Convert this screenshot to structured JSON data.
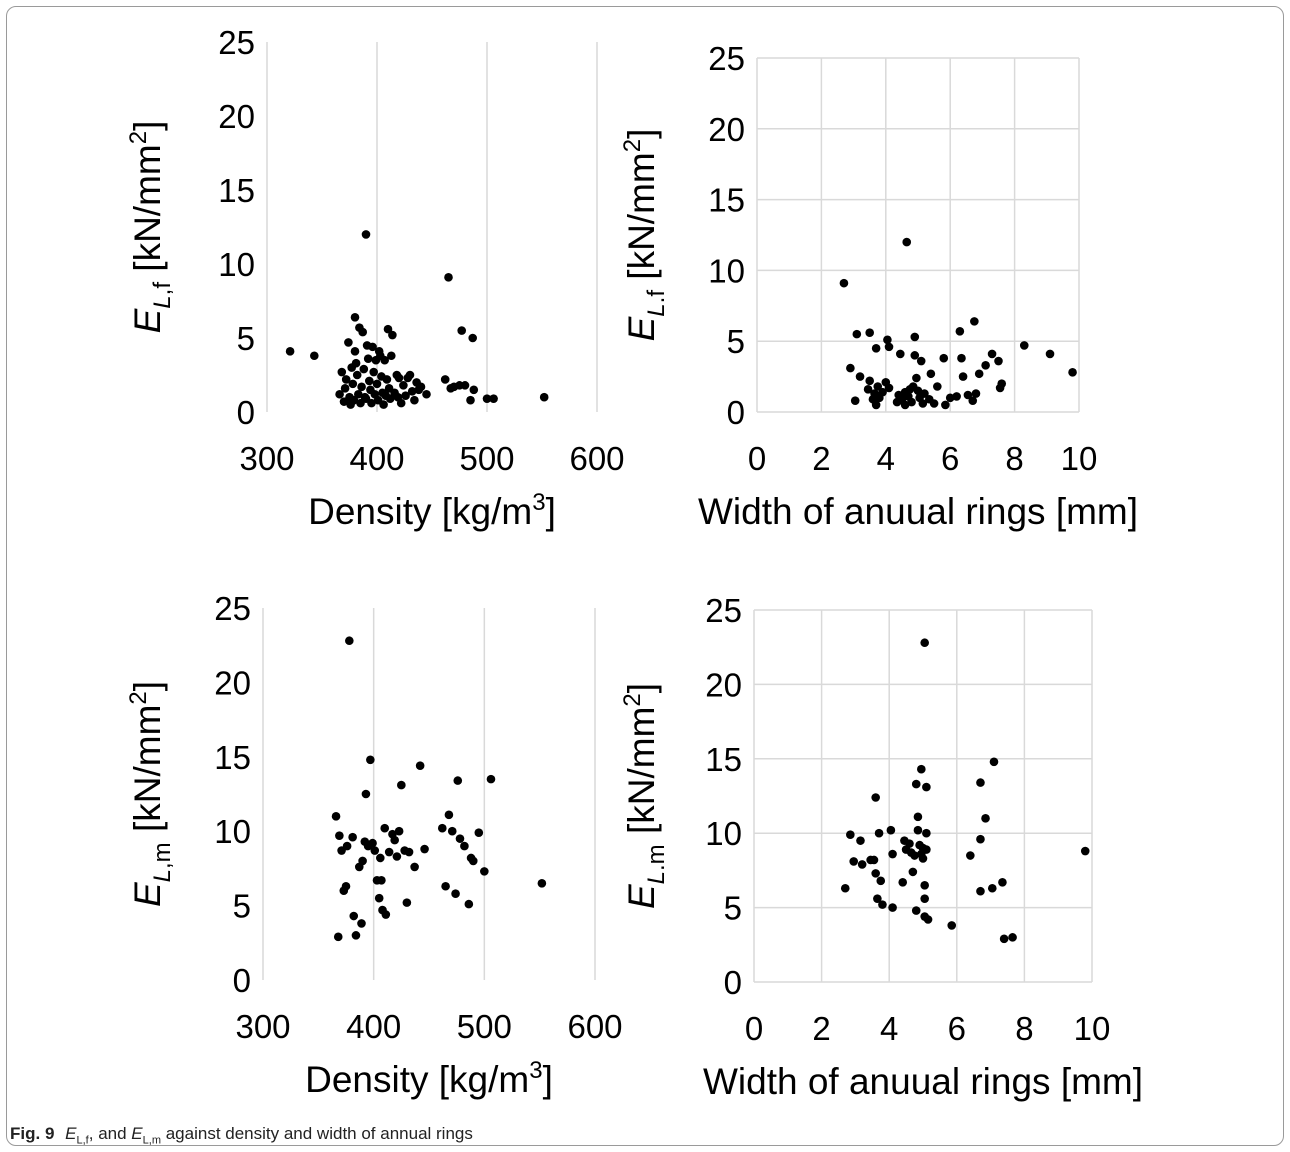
{
  "caption": {
    "fig_label": "Fig. 9",
    "text_sym1": "E",
    "text_sub1": "L,f",
    "text_mid": ",",
    "text_and": "and",
    "text_sym2": "E",
    "text_sub2": "L,m",
    "text_rest": "against density and width of annual rings"
  },
  "chart_data": [
    {
      "id": "tl",
      "type": "scatter",
      "xlabel": "Density [kg/m³]",
      "xlabel_parts": [
        "Density [kg/m",
        "3",
        "]"
      ],
      "ylabel_parts": [
        "E",
        "L,f",
        " [kN/mm",
        "2",
        "]"
      ],
      "xlim": [
        300,
        600
      ],
      "ylim": [
        0,
        25
      ],
      "xticks": [
        300,
        400,
        500,
        600
      ],
      "yticks": [
        0,
        5,
        10,
        15,
        20,
        25
      ],
      "grid": "vertical",
      "points": [
        [
          321,
          4.1
        ],
        [
          343,
          3.8
        ],
        [
          366,
          1.2
        ],
        [
          368,
          2.7
        ],
        [
          370,
          0.7
        ],
        [
          371,
          1.6
        ],
        [
          372,
          2.2
        ],
        [
          374,
          4.7
        ],
        [
          375,
          1.0
        ],
        [
          376,
          0.5
        ],
        [
          377,
          3.0
        ],
        [
          378,
          1.9
        ],
        [
          379,
          0.8
        ],
        [
          380,
          6.4
        ],
        [
          380,
          4.1
        ],
        [
          381,
          3.3
        ],
        [
          382,
          2.5
        ],
        [
          383,
          1.2
        ],
        [
          384,
          5.7
        ],
        [
          385,
          0.6
        ],
        [
          386,
          1.7
        ],
        [
          387,
          5.4
        ],
        [
          388,
          2.9
        ],
        [
          389,
          1.0
        ],
        [
          390,
          0.9
        ],
        [
          390,
          12.0
        ],
        [
          391,
          4.5
        ],
        [
          392,
          3.6
        ],
        [
          393,
          2.1
        ],
        [
          394,
          1.5
        ],
        [
          395,
          0.6
        ],
        [
          396,
          4.4
        ],
        [
          397,
          2.7
        ],
        [
          398,
          1.2
        ],
        [
          399,
          3.5
        ],
        [
          400,
          1.9
        ],
        [
          401,
          0.8
        ],
        [
          402,
          4.1
        ],
        [
          403,
          3.8
        ],
        [
          404,
          2.4
        ],
        [
          405,
          1.3
        ],
        [
          406,
          0.5
        ],
        [
          407,
          3.5
        ],
        [
          408,
          1.1
        ],
        [
          409,
          2.2
        ],
        [
          410,
          5.6
        ],
        [
          411,
          1.6
        ],
        [
          412,
          0.9
        ],
        [
          413,
          3.8
        ],
        [
          414,
          5.2
        ],
        [
          416,
          1.3
        ],
        [
          418,
          2.5
        ],
        [
          419,
          1.0
        ],
        [
          420,
          2.3
        ],
        [
          422,
          0.6
        ],
        [
          424,
          1.8
        ],
        [
          426,
          1.1
        ],
        [
          428,
          2.3
        ],
        [
          430,
          2.5
        ],
        [
          432,
          1.4
        ],
        [
          434,
          0.8
        ],
        [
          436,
          2.0
        ],
        [
          438,
          1.5
        ],
        [
          440,
          1.7
        ],
        [
          445,
          1.2
        ],
        [
          462,
          2.2
        ],
        [
          465,
          9.1
        ],
        [
          467,
          1.6
        ],
        [
          470,
          1.7
        ],
        [
          475,
          1.8
        ],
        [
          477,
          5.5
        ],
        [
          480,
          1.8
        ],
        [
          485,
          0.8
        ],
        [
          487,
          5.0
        ],
        [
          488,
          1.5
        ],
        [
          500,
          0.9
        ],
        [
          506,
          0.9
        ],
        [
          552,
          1.0
        ]
      ]
    },
    {
      "id": "tr",
      "type": "scatter",
      "xlabel": "Width of anuual rings [mm]",
      "xlabel_parts": [
        "Width of anuual rings [mm]",
        "",
        ""
      ],
      "ylabel_parts": [
        "E",
        "L.f",
        " [kN/mm",
        "2",
        "]"
      ],
      "xlim": [
        0,
        10
      ],
      "ylim": [
        0,
        25
      ],
      "xticks": [
        0,
        2,
        4,
        6,
        8,
        10
      ],
      "yticks": [
        0,
        5,
        10,
        15,
        20,
        25
      ],
      "grid": "both",
      "points": [
        [
          2.7,
          9.1
        ],
        [
          2.9,
          3.1
        ],
        [
          3.05,
          0.8
        ],
        [
          3.1,
          5.5
        ],
        [
          3.2,
          2.5
        ],
        [
          3.45,
          1.6
        ],
        [
          3.5,
          5.6
        ],
        [
          3.5,
          2.2
        ],
        [
          3.6,
          0.9
        ],
        [
          3.65,
          1.3
        ],
        [
          3.7,
          0.5
        ],
        [
          3.7,
          4.5
        ],
        [
          3.75,
          1.8
        ],
        [
          3.8,
          1.0
        ],
        [
          3.9,
          1.4
        ],
        [
          4.0,
          2.1
        ],
        [
          4.05,
          5.1
        ],
        [
          4.1,
          4.6
        ],
        [
          4.1,
          1.7
        ],
        [
          4.35,
          0.7
        ],
        [
          4.4,
          1.2
        ],
        [
          4.45,
          4.1
        ],
        [
          4.5,
          0.9
        ],
        [
          4.6,
          0.5
        ],
        [
          4.6,
          1.4
        ],
        [
          4.65,
          12.0
        ],
        [
          4.7,
          1.1
        ],
        [
          4.75,
          1.6
        ],
        [
          4.8,
          0.7
        ],
        [
          4.85,
          1.8
        ],
        [
          4.9,
          5.3
        ],
        [
          4.9,
          4.0
        ],
        [
          4.95,
          2.4
        ],
        [
          5.0,
          1.5
        ],
        [
          5.05,
          1.0
        ],
        [
          5.1,
          3.6
        ],
        [
          5.15,
          0.6
        ],
        [
          5.2,
          1.3
        ],
        [
          5.35,
          0.9
        ],
        [
          5.4,
          2.7
        ],
        [
          5.5,
          0.6
        ],
        [
          5.6,
          1.8
        ],
        [
          5.8,
          3.8
        ],
        [
          5.85,
          0.5
        ],
        [
          6.0,
          1.0
        ],
        [
          6.2,
          1.1
        ],
        [
          6.3,
          5.7
        ],
        [
          6.35,
          3.8
        ],
        [
          6.4,
          2.5
        ],
        [
          6.55,
          1.2
        ],
        [
          6.7,
          0.8
        ],
        [
          6.75,
          6.4
        ],
        [
          6.8,
          1.3
        ],
        [
          6.9,
          2.7
        ],
        [
          7.1,
          3.3
        ],
        [
          7.3,
          4.1
        ],
        [
          7.5,
          3.6
        ],
        [
          7.55,
          1.7
        ],
        [
          7.6,
          2.0
        ],
        [
          8.3,
          4.7
        ],
        [
          9.1,
          4.1
        ],
        [
          9.8,
          2.8
        ]
      ]
    },
    {
      "id": "bl",
      "type": "scatter",
      "xlabel": "Density [kg/m³]",
      "xlabel_parts": [
        "Density [kg/m",
        "3",
        "]"
      ],
      "ylabel_parts": [
        "E",
        "L,m",
        " [kN/mm",
        "2",
        "]"
      ],
      "xlim": [
        300,
        600
      ],
      "ylim": [
        0,
        25
      ],
      "xticks": [
        300,
        400,
        500,
        600
      ],
      "yticks": [
        0,
        5,
        10,
        15,
        20,
        25
      ],
      "grid": "vertical",
      "points": [
        [
          366,
          11.0
        ],
        [
          368,
          2.9
        ],
        [
          369,
          9.7
        ],
        [
          371,
          8.7
        ],
        [
          373,
          6.0
        ],
        [
          375,
          6.3
        ],
        [
          376,
          9.0
        ],
        [
          378,
          22.8
        ],
        [
          381,
          9.6
        ],
        [
          382,
          4.3
        ],
        [
          384,
          3.0
        ],
        [
          387,
          7.6
        ],
        [
          389,
          3.8
        ],
        [
          390,
          8.0
        ],
        [
          392,
          9.3
        ],
        [
          393,
          12.5
        ],
        [
          395,
          9.0
        ],
        [
          397,
          14.8
        ],
        [
          399,
          9.2
        ],
        [
          401,
          8.7
        ],
        [
          403,
          6.7
        ],
        [
          405,
          5.5
        ],
        [
          406,
          8.2
        ],
        [
          407,
          6.7
        ],
        [
          408,
          4.7
        ],
        [
          410,
          10.2
        ],
        [
          411,
          4.4
        ],
        [
          414,
          8.6
        ],
        [
          417,
          9.8
        ],
        [
          419,
          9.4
        ],
        [
          421,
          8.3
        ],
        [
          423,
          10.0
        ],
        [
          425,
          13.1
        ],
        [
          428,
          8.7
        ],
        [
          430,
          5.2
        ],
        [
          432,
          8.6
        ],
        [
          437,
          7.6
        ],
        [
          442,
          14.4
        ],
        [
          446,
          8.8
        ],
        [
          462,
          10.2
        ],
        [
          465,
          6.3
        ],
        [
          468,
          11.1
        ],
        [
          471,
          10.0
        ],
        [
          474,
          5.8
        ],
        [
          476,
          13.4
        ],
        [
          478,
          9.5
        ],
        [
          482,
          9.0
        ],
        [
          486,
          5.1
        ],
        [
          488,
          8.2
        ],
        [
          490,
          8.0
        ],
        [
          495,
          9.9
        ],
        [
          500,
          7.3
        ],
        [
          506,
          13.5
        ],
        [
          552,
          6.5
        ]
      ]
    },
    {
      "id": "br",
      "type": "scatter",
      "xlabel": "Width of anuual rings [mm]",
      "xlabel_parts": [
        "Width of anuual rings [mm]",
        "",
        ""
      ],
      "ylabel_parts": [
        "E",
        "L.m",
        " [kN/mm",
        "2",
        "]"
      ],
      "xlim": [
        0,
        10
      ],
      "ylim": [
        0,
        25
      ],
      "xticks": [
        0,
        2,
        4,
        6,
        8,
        10
      ],
      "yticks": [
        0,
        5,
        10,
        15,
        20,
        25
      ],
      "grid": "both",
      "points": [
        [
          2.7,
          6.3
        ],
        [
          2.85,
          9.9
        ],
        [
          2.95,
          8.1
        ],
        [
          3.15,
          9.5
        ],
        [
          3.2,
          7.9
        ],
        [
          3.45,
          8.2
        ],
        [
          3.55,
          8.2
        ],
        [
          3.6,
          12.4
        ],
        [
          3.6,
          7.3
        ],
        [
          3.65,
          5.6
        ],
        [
          3.7,
          10.0
        ],
        [
          3.75,
          6.8
        ],
        [
          3.8,
          5.2
        ],
        [
          4.05,
          10.2
        ],
        [
          4.1,
          8.6
        ],
        [
          4.1,
          5.0
        ],
        [
          4.4,
          6.7
        ],
        [
          4.45,
          9.5
        ],
        [
          4.5,
          8.9
        ],
        [
          4.6,
          9.3
        ],
        [
          4.65,
          8.7
        ],
        [
          4.7,
          7.4
        ],
        [
          4.75,
          8.5
        ],
        [
          4.8,
          13.3
        ],
        [
          4.8,
          4.8
        ],
        [
          4.85,
          10.2
        ],
        [
          4.85,
          11.1
        ],
        [
          4.9,
          9.2
        ],
        [
          4.95,
          8.6
        ],
        [
          4.95,
          14.3
        ],
        [
          5.0,
          8.3
        ],
        [
          5.0,
          9.0
        ],
        [
          5.05,
          22.8
        ],
        [
          5.05,
          6.5
        ],
        [
          5.05,
          5.6
        ],
        [
          5.05,
          4.4
        ],
        [
          5.1,
          13.1
        ],
        [
          5.1,
          10.0
        ],
        [
          5.1,
          8.9
        ],
        [
          5.15,
          4.2
        ],
        [
          5.85,
          3.8
        ],
        [
          6.4,
          8.5
        ],
        [
          6.7,
          6.1
        ],
        [
          6.7,
          9.6
        ],
        [
          6.7,
          13.4
        ],
        [
          6.85,
          11.0
        ],
        [
          7.05,
          6.3
        ],
        [
          7.1,
          14.8
        ],
        [
          7.4,
          2.9
        ],
        [
          7.35,
          6.7
        ],
        [
          7.65,
          3.0
        ],
        [
          9.8,
          8.8
        ]
      ]
    }
  ]
}
